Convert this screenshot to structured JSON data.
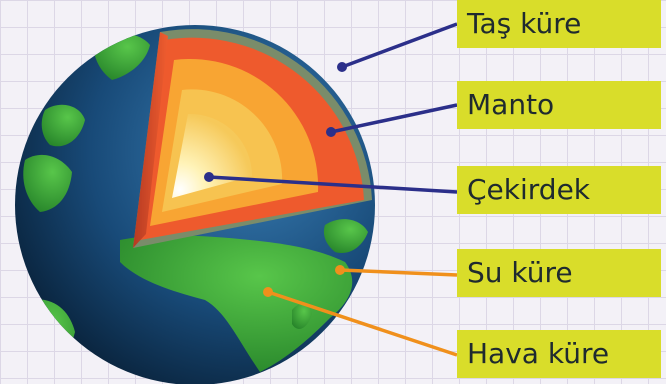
{
  "labels": {
    "crust": "Taş küre",
    "mantle": "Manto",
    "core": "Çekirdek",
    "hydrosphere": "Su küre",
    "atmosphere": "Hava küre"
  },
  "colors": {
    "label_background": "#d9dd2a",
    "blue_leader": "#2b2f8a",
    "orange_leader": "#f0901c",
    "ocean": "#123a5e",
    "land": "#3fae3a",
    "mantle_outer": "#ee5a2d",
    "mantle_inner": "#f8a533",
    "core": "#fbe48a"
  }
}
